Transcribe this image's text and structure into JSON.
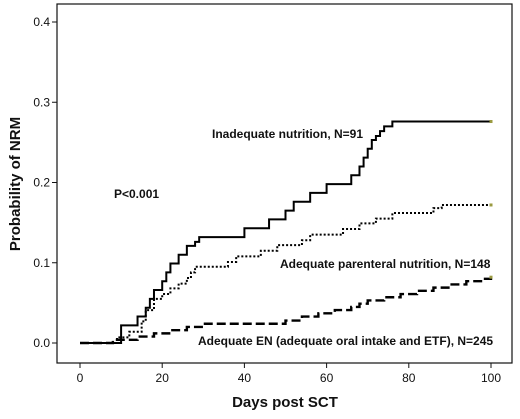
{
  "chart_data": {
    "type": "line",
    "step": true,
    "xlabel": "Days post SCT",
    "ylabel": "Probability of NRM",
    "xlim": [
      0,
      100
    ],
    "ylim": [
      0,
      0.4
    ],
    "xticks": [
      "0",
      "20",
      "40",
      "60",
      "80",
      "100"
    ],
    "yticks": [
      "0.0",
      "0.1",
      "0.2",
      "0.3",
      "0.4"
    ],
    "grid": false,
    "annotation": "P<0.001",
    "series": [
      {
        "name": "Inadequate nutrition, N=91",
        "line_style": "solid",
        "color": "#000000",
        "x": [
          0,
          10,
          14,
          16,
          17,
          18,
          20,
          21,
          22,
          24,
          26,
          28,
          29,
          30,
          36,
          40,
          46,
          50,
          52,
          56,
          60,
          66,
          68,
          69,
          70,
          71,
          72,
          73,
          74,
          76,
          100
        ],
        "y": [
          0,
          0.022,
          0.033,
          0.044,
          0.055,
          0.066,
          0.077,
          0.088,
          0.099,
          0.11,
          0.121,
          0.126,
          0.132,
          0.132,
          0.132,
          0.143,
          0.154,
          0.165,
          0.176,
          0.187,
          0.198,
          0.209,
          0.22,
          0.231,
          0.242,
          0.253,
          0.258,
          0.264,
          0.27,
          0.276,
          0.276
        ]
      },
      {
        "name": "Adequate parenteral nutrition, N=148",
        "line_style": "dotted",
        "color": "#000000",
        "x": [
          0,
          9,
          12,
          15,
          16,
          18,
          20,
          22,
          24,
          26,
          27,
          28,
          30,
          36,
          38,
          40,
          44,
          48,
          50,
          54,
          56,
          60,
          64,
          66,
          68,
          70,
          72,
          74,
          76,
          80,
          84,
          86,
          88,
          90,
          100
        ],
        "y": [
          0,
          0.007,
          0.014,
          0.027,
          0.041,
          0.055,
          0.061,
          0.068,
          0.074,
          0.081,
          0.088,
          0.095,
          0.095,
          0.101,
          0.108,
          0.108,
          0.115,
          0.122,
          0.122,
          0.128,
          0.135,
          0.135,
          0.142,
          0.142,
          0.149,
          0.149,
          0.155,
          0.155,
          0.162,
          0.162,
          0.162,
          0.168,
          0.172,
          0.172,
          0.172
        ]
      },
      {
        "name": "Adequate EN (adequate oral intake and ETF), N=245",
        "line_style": "dashed",
        "color": "#000000",
        "x": [
          0,
          8,
          14,
          18,
          22,
          26,
          30,
          46,
          50,
          54,
          58,
          62,
          66,
          68,
          70,
          74,
          78,
          82,
          86,
          90,
          94,
          98,
          100
        ],
        "y": [
          0,
          0.004,
          0.008,
          0.012,
          0.016,
          0.02,
          0.024,
          0.024,
          0.028,
          0.033,
          0.037,
          0.041,
          0.045,
          0.049,
          0.053,
          0.057,
          0.061,
          0.065,
          0.069,
          0.073,
          0.077,
          0.08,
          0.082
        ]
      }
    ]
  }
}
